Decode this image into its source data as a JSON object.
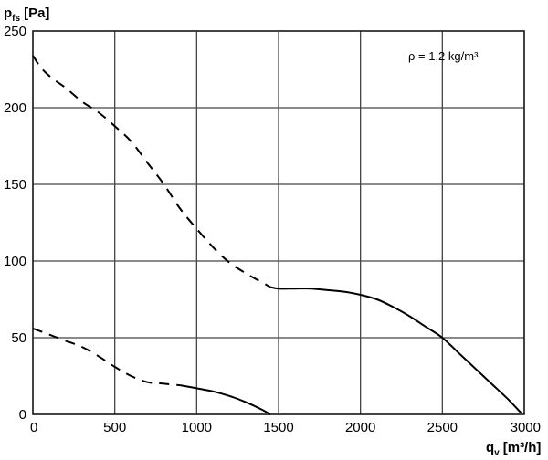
{
  "chart_data": {
    "type": "line",
    "xlabel": {
      "symbol": "q",
      "sub": "v",
      "unit": "[m³/h]"
    },
    "ylabel": {
      "symbol": "p",
      "sub": "fs",
      "unit": "[Pa]"
    },
    "xlim": [
      0,
      3000
    ],
    "ylim": [
      0,
      250
    ],
    "xticks": [
      "0",
      "500",
      "1000",
      "1500",
      "2000",
      "2500",
      "3000"
    ],
    "yticks": [
      "0",
      "50",
      "100",
      "150",
      "200",
      "250"
    ],
    "grid": true,
    "annotation": "ρ = 1,2 kg/m³",
    "series": [
      {
        "style": "dashed",
        "points": [
          [
            0,
            234
          ],
          [
            50,
            226
          ],
          [
            120,
            219
          ],
          [
            200,
            213
          ],
          [
            300,
            204
          ],
          [
            400,
            197
          ],
          [
            500,
            188
          ],
          [
            600,
            178
          ],
          [
            700,
            164
          ],
          [
            800,
            150
          ],
          [
            900,
            134
          ],
          [
            1000,
            121
          ],
          [
            1100,
            109
          ],
          [
            1200,
            99
          ],
          [
            1300,
            92
          ],
          [
            1400,
            86
          ],
          [
            1450,
            83
          ]
        ]
      },
      {
        "style": "solid",
        "points": [
          [
            1450,
            83
          ],
          [
            1500,
            82
          ],
          [
            1600,
            82
          ],
          [
            1700,
            82
          ],
          [
            1800,
            81
          ],
          [
            1900,
            80
          ],
          [
            2000,
            78
          ],
          [
            2100,
            75
          ],
          [
            2200,
            70
          ],
          [
            2300,
            64
          ],
          [
            2400,
            57
          ],
          [
            2500,
            50
          ],
          [
            2600,
            40
          ],
          [
            2700,
            30
          ],
          [
            2800,
            20
          ],
          [
            2900,
            10
          ],
          [
            2980,
            1
          ]
        ]
      },
      {
        "style": "dashed",
        "points": [
          [
            0,
            56
          ],
          [
            100,
            52
          ],
          [
            200,
            48
          ],
          [
            300,
            44
          ],
          [
            400,
            38
          ],
          [
            500,
            31
          ],
          [
            600,
            25
          ],
          [
            700,
            21
          ],
          [
            800,
            20
          ],
          [
            900,
            19
          ]
        ]
      },
      {
        "style": "solid",
        "points": [
          [
            900,
            19
          ],
          [
            1000,
            17
          ],
          [
            1100,
            15
          ],
          [
            1200,
            12
          ],
          [
            1300,
            8
          ],
          [
            1400,
            3
          ],
          [
            1450,
            0
          ]
        ]
      }
    ]
  }
}
